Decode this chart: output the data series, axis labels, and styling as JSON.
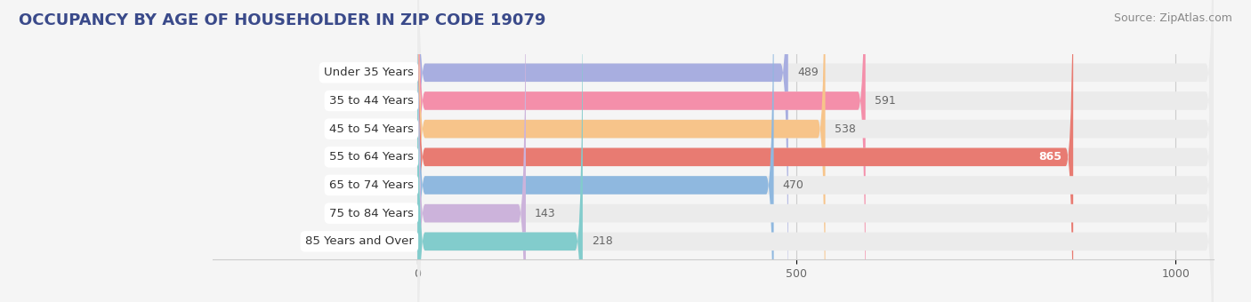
{
  "title": "OCCUPANCY BY AGE OF HOUSEHOLDER IN ZIP CODE 19079",
  "source": "Source: ZipAtlas.com",
  "categories": [
    "Under 35 Years",
    "35 to 44 Years",
    "45 to 54 Years",
    "55 to 64 Years",
    "65 to 74 Years",
    "75 to 84 Years",
    "85 Years and Over"
  ],
  "values": [
    489,
    591,
    538,
    865,
    470,
    143,
    218
  ],
  "bar_colors": [
    "#a8aee0",
    "#f48faa",
    "#f7c48a",
    "#e87b72",
    "#8fb8df",
    "#ccb3db",
    "#82cccc"
  ],
  "bar_bg_color": "#ebebeb",
  "xlim_min": -270,
  "xlim_max": 1050,
  "xticks": [
    0,
    500,
    1000
  ],
  "title_color": "#3a4a8a",
  "source_color": "#888888",
  "label_bg_color": "#ffffff",
  "label_text_color": "#333333",
  "value_color_inside": "#ffffff",
  "value_color_outside": "#666666",
  "background_color": "#f5f5f5",
  "bar_height": 0.65,
  "title_fontsize": 13,
  "source_fontsize": 9,
  "label_fontsize": 9.5,
  "value_fontsize": 9
}
